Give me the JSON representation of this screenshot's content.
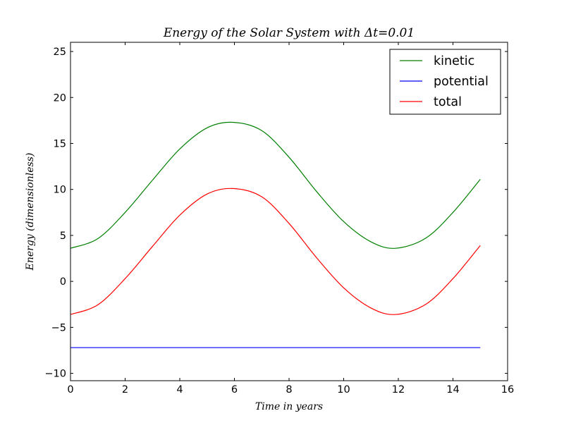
{
  "chart_data": {
    "type": "line",
    "title": "Energy of the Solar System with Δt=0.01",
    "xlabel": "Time in years",
    "ylabel": "Energy (dimensionless)",
    "xlim": [
      0,
      16
    ],
    "ylim": [
      -10.8,
      26
    ],
    "x_ticks": [
      0,
      2,
      4,
      6,
      8,
      10,
      12,
      14,
      16
    ],
    "y_ticks": [
      -10,
      -5,
      0,
      5,
      10,
      15,
      20,
      25
    ],
    "x_tick_labels": [
      "0",
      "2",
      "4",
      "6",
      "8",
      "10",
      "12",
      "14",
      "16"
    ],
    "y_tick_labels": [
      "−10",
      "−5",
      "0",
      "5",
      "10",
      "15",
      "20",
      "25"
    ],
    "grid": false,
    "legend_position": "top-right",
    "x": [
      0,
      1,
      2,
      3,
      4,
      5,
      5.95,
      7,
      8,
      9,
      10,
      11,
      11.9,
      13,
      14,
      15
    ],
    "series": [
      {
        "name": "kinetic",
        "color": "#008000",
        "values": [
          3.6,
          4.65,
          7.5,
          11.0,
          14.4,
          16.7,
          17.3,
          16.4,
          13.5,
          9.8,
          6.5,
          4.3,
          3.6,
          4.7,
          7.5,
          11.1
        ]
      },
      {
        "name": "potential",
        "color": "#0000ff",
        "values": [
          -7.2,
          -7.2,
          -7.2,
          -7.2,
          -7.2,
          -7.2,
          -7.2,
          -7.2,
          -7.2,
          -7.2,
          -7.2,
          -7.2,
          -7.2,
          -7.2,
          -7.2,
          -7.2
        ]
      },
      {
        "name": "total",
        "color": "#ff0000",
        "values": [
          -3.6,
          -2.55,
          0.3,
          3.8,
          7.2,
          9.5,
          10.1,
          9.2,
          6.3,
          2.6,
          -0.7,
          -2.9,
          -3.6,
          -2.5,
          0.3,
          3.9
        ]
      }
    ]
  }
}
